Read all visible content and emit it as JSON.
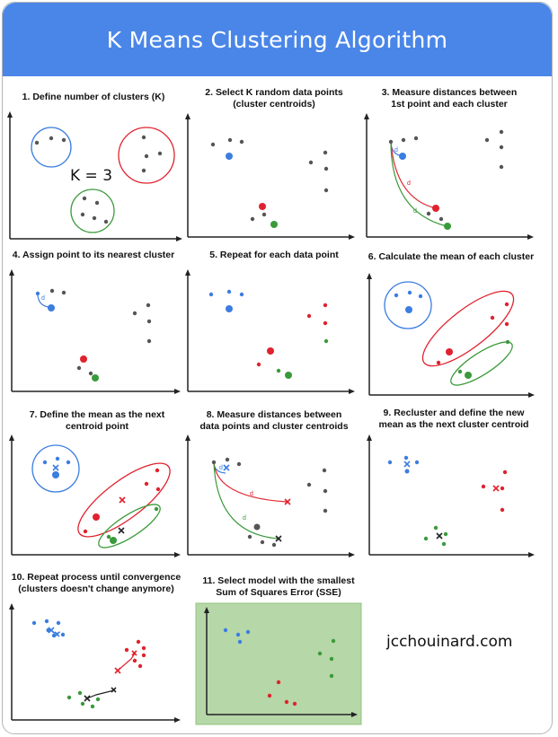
{
  "title": "K Means Clustering Algorithm",
  "steps": [
    {
      "label": "1. Define number of clusters (K)"
    },
    {
      "label": "2. Select K random data points\n(cluster centroids)"
    },
    {
      "label": "3. Measure distances between\n1st point and each cluster"
    },
    {
      "label": "4. Assign point to its nearest cluster"
    },
    {
      "label": "5. Repeat for each data point"
    },
    {
      "label": "6. Calculate the mean of each cluster"
    },
    {
      "label": "7. Define the mean as the next\ncentroid point"
    },
    {
      "label": "8. Measure distances between\ndata points and cluster centroids"
    },
    {
      "label": "9. Recluster and define the new\nmean as the next cluster centroid"
    },
    {
      "label": "10. Repeat process until convergence\n(clusters doesn't change anymore)"
    },
    {
      "label": "11. Select model with the smallest\nSum of Squares Error (SSE)"
    }
  ],
  "k_label": "K = 3",
  "distance_label": "d",
  "credit": "jcchouinard.com",
  "colors": {
    "header": "#4a86e8",
    "blue": "#3b7de0",
    "red": "#e0222e",
    "green": "#3a9a3a",
    "gray": "#555555",
    "selected_panel": "#b6d7a8"
  }
}
